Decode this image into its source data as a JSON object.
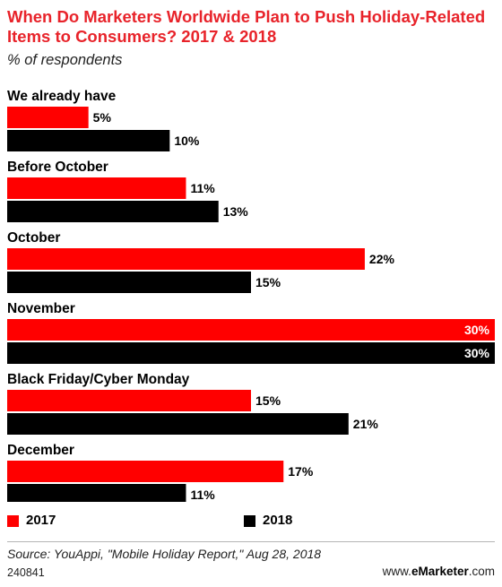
{
  "chart_data": {
    "type": "bar",
    "orientation": "horizontal",
    "title": "When Do Marketers Worldwide Plan to Push Holiday-Related Items to Consumers? 2017 & 2018",
    "subtitle": "% of respondents",
    "categories": [
      "We already have",
      "Before October",
      "October",
      "November",
      "Black Friday/Cyber Monday",
      "December"
    ],
    "series": [
      {
        "name": "2017",
        "color": "#ff0000",
        "values": [
          5,
          11,
          22,
          30,
          15,
          17
        ],
        "labels": [
          "5%",
          "11%",
          "22%",
          "30%",
          "15%",
          "17%"
        ]
      },
      {
        "name": "2018",
        "color": "#000000",
        "values": [
          10,
          13,
          15,
          30,
          21,
          11
        ],
        "labels": [
          "10%",
          "13%",
          "15%",
          "30%",
          "21%",
          "11%"
        ]
      }
    ],
    "value_unit": "%",
    "xlim": [
      0,
      30
    ],
    "grid": false,
    "axes_visible": false,
    "legend_position": "bottom"
  },
  "footer": {
    "source": "Source: YouAppi, \"Mobile Holiday Report,\" Aug 28, 2018",
    "chart_id": "240841",
    "brand_prefix": "www.",
    "brand_bold": "eMarketer",
    "brand_suffix": ".com"
  }
}
